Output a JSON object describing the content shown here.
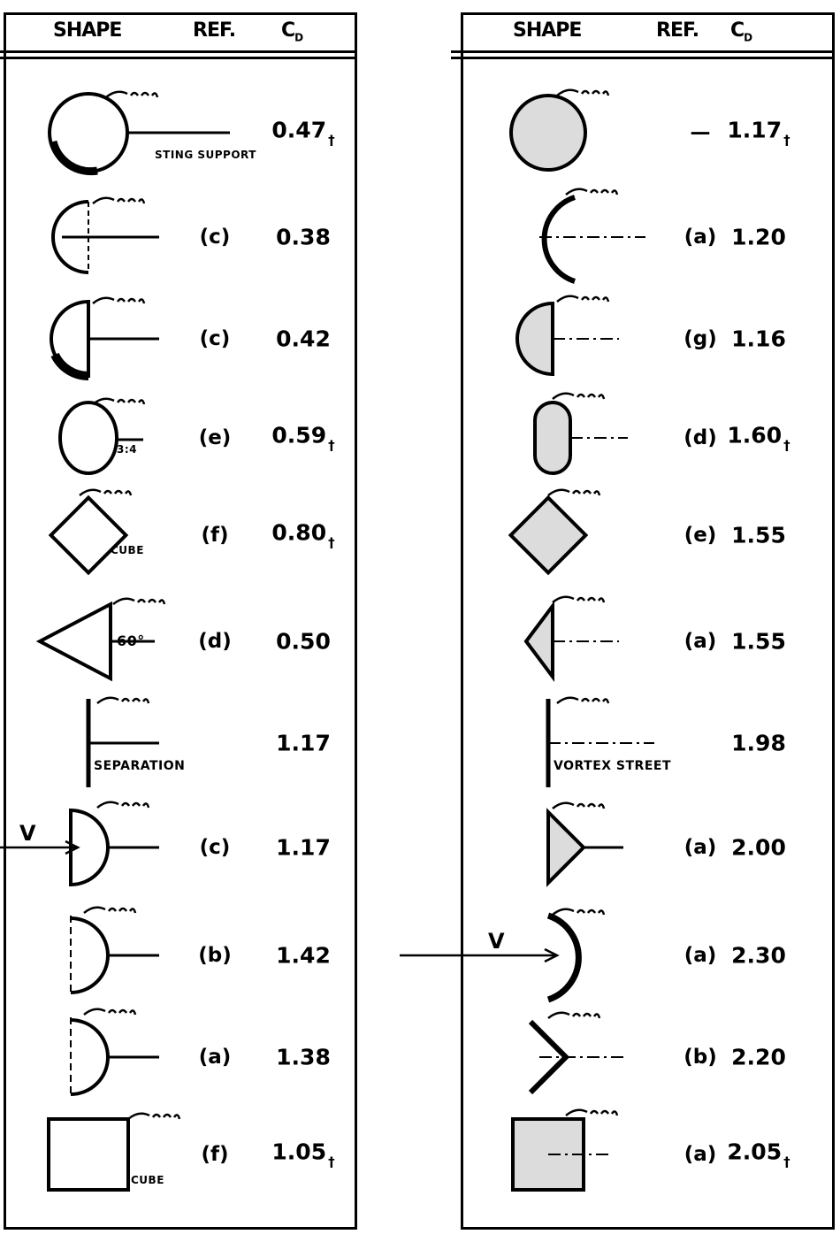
{
  "headers": {
    "shape": "SHAPE",
    "ref": "REF.",
    "cd": "C",
    "cd_sub": "D",
    "cd_dot": "•"
  },
  "velocity_label": "V",
  "note_mark": "†",
  "left": [
    {
      "shape": "sphere",
      "label": "STING SUPPORT",
      "ref": "",
      "cd": "0.47",
      "note": true
    },
    {
      "shape": "hollow-hemisphere-open-dashed",
      "ref": "(c)",
      "cd": "0.38"
    },
    {
      "shape": "solid-hemisphere",
      "ref": "(c)",
      "cd": "0.42"
    },
    {
      "shape": "ellipsoid",
      "label": "3:4",
      "ref": "(e)",
      "cd": "0.59",
      "note": true
    },
    {
      "shape": "cube-diamond",
      "label": "CUBE",
      "ref": "(f)",
      "cd": "0.80",
      "note": true
    },
    {
      "shape": "cone",
      "label": "60°",
      "ref": "(d)",
      "cd": "0.50"
    },
    {
      "shape": "disk",
      "label": "SEPARATION",
      "ref": "",
      "cd": "1.17"
    },
    {
      "shape": "hemisphere-flat-front",
      "ref": "(c)",
      "cd": "1.17",
      "velocity": true
    },
    {
      "shape": "hollow-hemisphere-cup",
      "ref": "(b)",
      "cd": "1.42"
    },
    {
      "shape": "hollow-hemisphere-cup",
      "ref": "(a)",
      "cd": "1.38"
    },
    {
      "shape": "cube",
      "label": "CUBE",
      "ref": "(f)",
      "cd": "1.05",
      "note": true
    }
  ],
  "right": [
    {
      "shape": "circular-cylinder",
      "ref": "—",
      "cd": "1.17",
      "note": true
    },
    {
      "shape": "semicircular-shell-convex",
      "ref": "(a)",
      "cd": "1.20"
    },
    {
      "shape": "half-cylinder",
      "ref": "(g)",
      "cd": "1.16"
    },
    {
      "shape": "rounded-rectangle",
      "ref": "(d)",
      "cd": "1.60",
      "note": true
    },
    {
      "shape": "square-diamond",
      "ref": "(e)",
      "cd": "1.55"
    },
    {
      "shape": "triangle-point-forward",
      "ref": "(a)",
      "cd": "1.55"
    },
    {
      "shape": "flat-plate",
      "label": "VORTEX STREET",
      "ref": "",
      "cd": "1.98"
    },
    {
      "shape": "triangle-flat-forward",
      "ref": "(a)",
      "cd": "2.00"
    },
    {
      "shape": "semicircular-shell-concave",
      "ref": "(a)",
      "cd": "2.30",
      "velocity": true
    },
    {
      "shape": "v-wedge",
      "ref": "(b)",
      "cd": "2.20"
    },
    {
      "shape": "square-cylinder",
      "ref": "(a)",
      "cd": "2.05",
      "note": true
    }
  ]
}
